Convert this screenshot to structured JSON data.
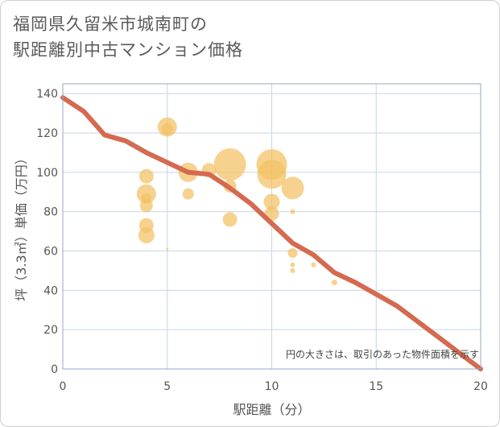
{
  "title": {
    "line1": "福岡県久留米市城南町の",
    "line2": "駅距離別中古マンション価格"
  },
  "colors": {
    "bubble": "#f2c063",
    "trend": "#d46a4f",
    "grid": "#c8d6e8",
    "plot_border": "#8fa9c6"
  },
  "chart_data": {
    "type": "scatter",
    "title": "福岡県久留米市城南町の駅距離別中古マンション価格",
    "xlabel": "駅距離（分）",
    "ylabel": "坪（3.3㎡）単価（万円）",
    "xlim": [
      0,
      20
    ],
    "ylim": [
      0,
      145
    ],
    "xticks": [
      0,
      5,
      10,
      15,
      20
    ],
    "yticks": [
      0,
      20,
      40,
      60,
      80,
      100,
      120,
      140
    ],
    "grid": true,
    "annotation": "円の大きさは、取引のあった物件面積を示す",
    "bubbles": [
      {
        "x": 4,
        "y": 98,
        "size": 9
      },
      {
        "x": 4,
        "y": 89,
        "size": 12
      },
      {
        "x": 4,
        "y": 87,
        "size": 6
      },
      {
        "x": 4,
        "y": 83,
        "size": 8
      },
      {
        "x": 4,
        "y": 73,
        "size": 9
      },
      {
        "x": 4,
        "y": 68,
        "size": 10
      },
      {
        "x": 5,
        "y": 123,
        "size": 12
      },
      {
        "x": 5,
        "y": 122,
        "size": 7
      },
      {
        "x": 5,
        "y": 61,
        "size": 1.5
      },
      {
        "x": 6,
        "y": 100,
        "size": 12
      },
      {
        "x": 6,
        "y": 89,
        "size": 7
      },
      {
        "x": 7,
        "y": 101,
        "size": 9
      },
      {
        "x": 8,
        "y": 104,
        "size": 20
      },
      {
        "x": 8,
        "y": 93,
        "size": 8
      },
      {
        "x": 8,
        "y": 76,
        "size": 9
      },
      {
        "x": 10,
        "y": 104,
        "size": 19
      },
      {
        "x": 10,
        "y": 99,
        "size": 18
      },
      {
        "x": 10,
        "y": 85,
        "size": 10
      },
      {
        "x": 10,
        "y": 79,
        "size": 9
      },
      {
        "x": 11,
        "y": 92,
        "size": 14
      },
      {
        "x": 11,
        "y": 80,
        "size": 3
      },
      {
        "x": 11,
        "y": 59,
        "size": 6
      },
      {
        "x": 11,
        "y": 53,
        "size": 3
      },
      {
        "x": 11,
        "y": 50,
        "size": 3
      },
      {
        "x": 12,
        "y": 53,
        "size": 3
      },
      {
        "x": 13,
        "y": 44,
        "size": 3.5
      }
    ],
    "trend": {
      "name": "trend",
      "x": [
        0,
        1,
        2,
        3,
        4,
        5,
        6,
        7,
        8,
        9,
        10,
        11,
        12,
        13,
        14,
        15,
        16,
        17,
        18,
        19,
        20
      ],
      "y": [
        138,
        131,
        119,
        116,
        110,
        105,
        100,
        99,
        92,
        84,
        74,
        64,
        58,
        49,
        44,
        38,
        32,
        24,
        16,
        8,
        0
      ]
    }
  }
}
